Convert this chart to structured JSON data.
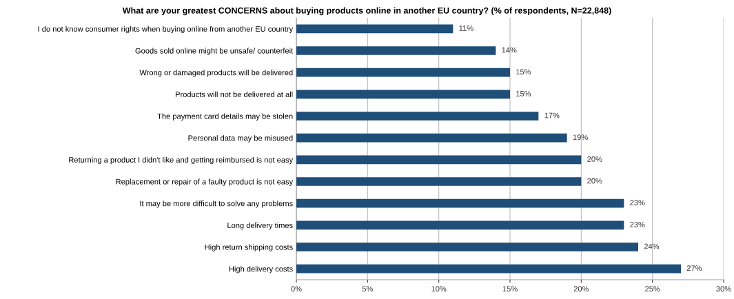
{
  "chart_data": {
    "type": "bar",
    "orientation": "horizontal",
    "title": "What are your greatest CONCERNS about buying products online in another EU country? (% of respondents, N=22,848)",
    "categories": [
      "I do not know consumer rights when buying online from another EU country",
      "Goods sold online might be unsafe/ counterfeit",
      "Wrong or damaged products will be delivered",
      "Products will not be delivered at all",
      "The payment card details may be stolen",
      "Personal data may be misused",
      "Returning a product I didn't like and getting reimbursed is not easy",
      "Replacement or repair of a faulty product is not easy",
      "It may be more difficult to solve any problems",
      "Long delivery times",
      "High return shipping costs",
      "High delivery costs"
    ],
    "values": [
      11,
      14,
      15,
      15,
      17,
      19,
      20,
      20,
      23,
      23,
      24,
      27
    ],
    "value_labels": [
      "11%",
      "14%",
      "15%",
      "15%",
      "17%",
      "19%",
      "20%",
      "20%",
      "23%",
      "23%",
      "24%",
      "27%"
    ],
    "color": "#1f4e79",
    "xlim": [
      0,
      30
    ],
    "xticks": [
      {
        "value": 0,
        "label": "0%"
      },
      {
        "value": 5,
        "label": "5%"
      },
      {
        "value": 10,
        "label": "10%"
      },
      {
        "value": 15,
        "label": "15%"
      },
      {
        "value": 20,
        "label": "20%"
      },
      {
        "value": 25,
        "label": "25%"
      },
      {
        "value": 30,
        "label": "30%"
      }
    ],
    "grid": "x",
    "legend": false
  }
}
